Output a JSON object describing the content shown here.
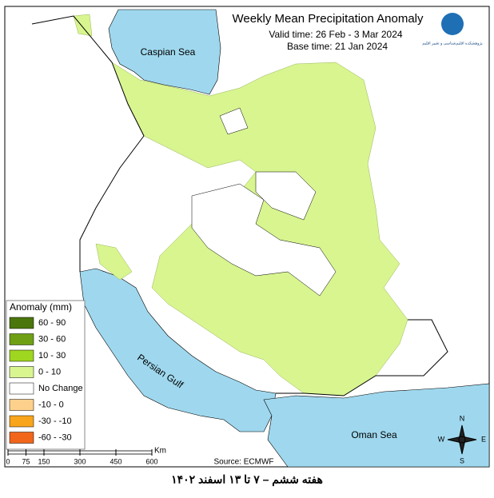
{
  "header": {
    "title": "Weekly Mean Precipitation Anomaly",
    "valid_time": "Valid time:  26 Feb - 3 Mar 2024",
    "base_time": "Base time: 21 Jan 2024",
    "logo_text": "پژوهشکده اقلیم‌شناسی و تغییر اقلیم"
  },
  "map": {
    "labels": [
      "Caspian Sea",
      "Persian Gulf",
      "Oman Sea"
    ],
    "source": "Source: ECMWF"
  },
  "legend": {
    "title": "Anomaly (mm)",
    "items": [
      {
        "label": "60 - 90",
        "color": "#4b760c"
      },
      {
        "label": "30 - 60",
        "color": "#6f9f14"
      },
      {
        "label": "10 - 30",
        "color": "#9fd61f"
      },
      {
        "label": "0 - 10",
        "color": "#d8f590"
      },
      {
        "label": "No Change",
        "color": "#ffffff"
      },
      {
        "label": "-10 - 0",
        "color": "#fdd18c"
      },
      {
        "label": "-30 - -10",
        "color": "#f8a51c"
      },
      {
        "label": "-60 - -30",
        "color": "#f1661b"
      }
    ]
  },
  "scale": {
    "unit": "Km",
    "ticks": [
      0,
      75,
      150,
      300,
      450,
      600
    ]
  },
  "compass": [
    "N",
    "S",
    "W",
    "E"
  ],
  "footer": "هفته ششم – ۷ تا ۱۳ اسفند ۱۴۰۲"
}
